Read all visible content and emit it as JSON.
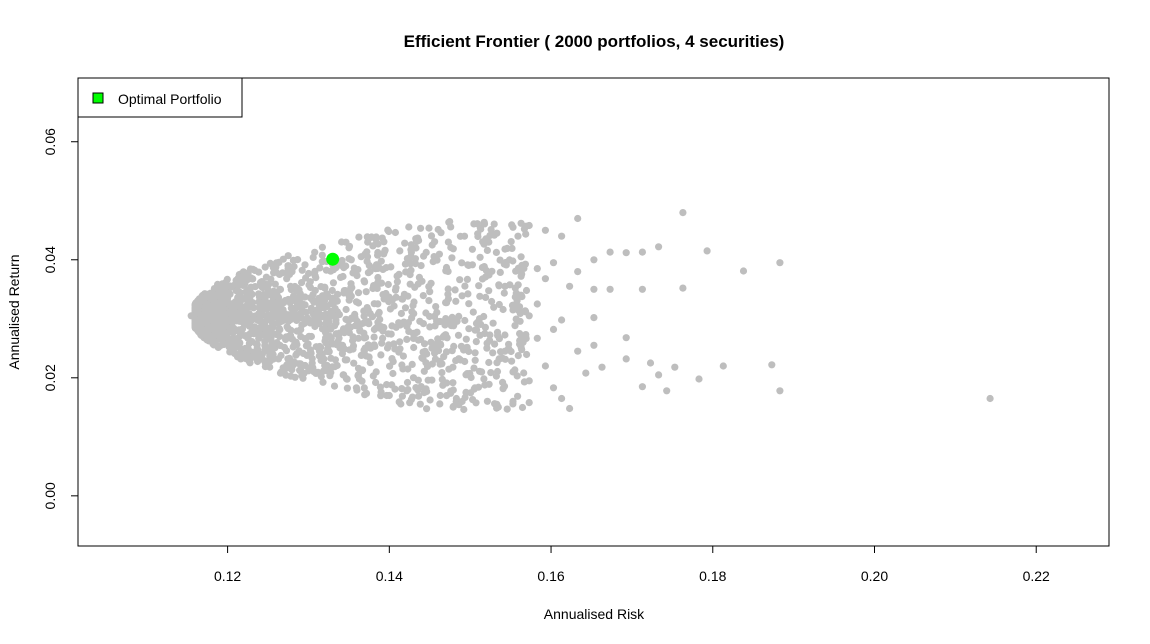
{
  "chart_data": {
    "type": "scatter",
    "title": "Efficient Frontier ( 2000  portfolios,  4  securities)",
    "xlabel": "Annualised Risk",
    "ylabel": "Annualised Return",
    "xlim": [
      0.1015,
      0.229
    ],
    "ylim": [
      -0.0085,
      0.0708
    ],
    "xticks": [
      0.12,
      0.14,
      0.16,
      0.18,
      0.2,
      0.22
    ],
    "xtick_labels": [
      "0.12",
      "0.14",
      "0.16",
      "0.18",
      "0.20",
      "0.22"
    ],
    "yticks": [
      0.0,
      0.02,
      0.04,
      0.06
    ],
    "ytick_labels": [
      "0.00",
      "0.02",
      "0.04",
      "0.06"
    ],
    "grid": false,
    "legend": {
      "position": "top-left",
      "label": "Optimal Portfolio",
      "color": "#00ff00"
    },
    "series": [
      {
        "name": "portfolios",
        "color": "#bebebe",
        "count": 2000,
        "frontier_vertex": [
          0.1155,
          0.0305
        ],
        "points": [
          [
            0.1633,
            0.047
          ],
          [
            0.1763,
            0.048
          ],
          [
            0.1573,
            0.0458
          ],
          [
            0.1553,
            0.0455
          ],
          [
            0.1593,
            0.045
          ],
          [
            0.1613,
            0.044
          ],
          [
            0.1733,
            0.0422
          ],
          [
            0.1793,
            0.0415
          ],
          [
            0.1673,
            0.0413
          ],
          [
            0.1693,
            0.0412
          ],
          [
            0.1713,
            0.0413
          ],
          [
            0.1883,
            0.0395
          ],
          [
            0.1653,
            0.04
          ],
          [
            0.1838,
            0.0381
          ],
          [
            0.1633,
            0.038
          ],
          [
            0.1593,
            0.0368
          ],
          [
            0.1623,
            0.0355
          ],
          [
            0.1763,
            0.0352
          ],
          [
            0.1713,
            0.035
          ],
          [
            0.1673,
            0.035
          ],
          [
            0.1653,
            0.035
          ],
          [
            0.1653,
            0.0302
          ],
          [
            0.1693,
            0.0268
          ],
          [
            0.1653,
            0.0255
          ],
          [
            0.1633,
            0.0245
          ],
          [
            0.1693,
            0.0232
          ],
          [
            0.1723,
            0.0225
          ],
          [
            0.1753,
            0.0218
          ],
          [
            0.1813,
            0.022
          ],
          [
            0.1873,
            0.0222
          ],
          [
            0.1663,
            0.0218
          ],
          [
            0.1643,
            0.0208
          ],
          [
            0.1733,
            0.0205
          ],
          [
            0.1783,
            0.0198
          ],
          [
            0.1713,
            0.0185
          ],
          [
            0.1743,
            0.0178
          ],
          [
            0.1883,
            0.0178
          ],
          [
            0.2143,
            0.0165
          ],
          [
            0.1613,
            0.0165
          ],
          [
            0.1623,
            0.0148
          ],
          [
            0.1573,
            0.0158
          ],
          [
            0.1533,
            0.0155
          ],
          [
            0.1553,
            0.016
          ],
          [
            0.1603,
            0.0183
          ],
          [
            0.1593,
            0.022
          ],
          [
            0.1573,
            0.0195
          ],
          [
            0.1553,
            0.021
          ],
          [
            0.1543,
            0.0245
          ],
          [
            0.1563,
            0.0252
          ],
          [
            0.1583,
            0.0267
          ],
          [
            0.1603,
            0.0282
          ],
          [
            0.1613,
            0.0298
          ],
          [
            0.1573,
            0.0305
          ],
          [
            0.1553,
            0.0315
          ],
          [
            0.1583,
            0.0325
          ],
          [
            0.1563,
            0.034
          ],
          [
            0.1543,
            0.0355
          ],
          [
            0.1563,
            0.0372
          ],
          [
            0.1583,
            0.0385
          ],
          [
            0.1603,
            0.0395
          ],
          [
            0.1563,
            0.0405
          ],
          [
            0.1543,
            0.0418
          ],
          [
            0.1523,
            0.043
          ],
          [
            0.1533,
            0.0445
          ],
          [
            0.1513,
            0.0452
          ],
          [
            0.1493,
            0.044
          ],
          [
            0.1473,
            0.043
          ],
          [
            0.1453,
            0.0425
          ],
          [
            0.1433,
            0.042
          ],
          [
            0.1413,
            0.0415
          ],
          [
            0.1393,
            0.041
          ],
          [
            0.1373,
            0.0405
          ],
          [
            0.1353,
            0.04
          ],
          [
            0.1483,
            0.0165
          ],
          [
            0.1503,
            0.0163
          ],
          [
            0.1463,
            0.017
          ],
          [
            0.1443,
            0.0175
          ],
          [
            0.1423,
            0.018
          ],
          [
            0.1403,
            0.0188
          ],
          [
            0.1383,
            0.0192
          ],
          [
            0.1363,
            0.0198
          ],
          [
            0.1343,
            0.0205
          ],
          [
            0.1323,
            0.0212
          ],
          [
            0.1303,
            0.0218
          ],
          [
            0.1283,
            0.0225
          ],
          [
            0.1263,
            0.0232
          ],
          [
            0.1243,
            0.024
          ],
          [
            0.1223,
            0.025
          ],
          [
            0.1203,
            0.026
          ],
          [
            0.1183,
            0.0272
          ],
          [
            0.1163,
            0.0285
          ],
          [
            0.1155,
            0.0305
          ]
        ]
      },
      {
        "name": "Optimal Portfolio",
        "color": "#00ff00",
        "points": [
          [
            0.133,
            0.0401
          ]
        ]
      }
    ]
  }
}
